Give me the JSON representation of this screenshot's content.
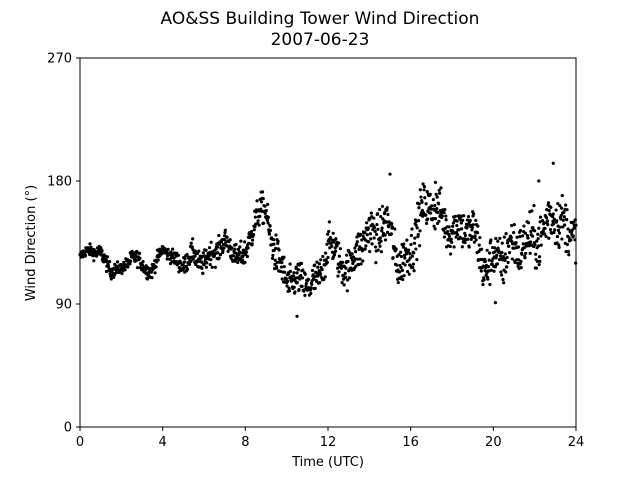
{
  "chart_data": {
    "type": "scatter",
    "title": "AO&SS Building Tower Wind Direction",
    "subtitle": "2007-06-23",
    "xlabel": "Time (UTC)",
    "ylabel": "Wind Direction (°)",
    "xlim": [
      0,
      24
    ],
    "ylim": [
      0,
      270
    ],
    "xticks": [
      0,
      4,
      8,
      12,
      16,
      20,
      24
    ],
    "xtick_labels": [
      "0",
      "4",
      "8",
      "12",
      "16",
      "20",
      "24"
    ],
    "yticks": [
      0,
      90,
      180,
      270
    ],
    "ytick_labels": [
      "0",
      "90",
      "180",
      "270"
    ],
    "grid": false,
    "marker_color": "#000000",
    "trend": {
      "x": [
        0,
        0.5,
        1.0,
        1.5,
        2.0,
        2.5,
        3.0,
        3.5,
        4.0,
        4.5,
        5.0,
        5.5,
        6.0,
        6.5,
        7.0,
        7.5,
        8.0,
        8.5,
        9.0,
        9.5,
        10.0,
        10.5,
        11.0,
        11.5,
        12.0,
        12.5,
        13.0,
        13.5,
        14.0,
        14.5,
        15.0,
        15.5,
        16.0,
        16.5,
        17.0,
        17.5,
        18.0,
        18.5,
        19.0,
        19.5,
        20.0,
        20.5,
        21.0,
        21.5,
        22.0,
        22.5,
        23.0,
        23.5,
        24.0
      ],
      "y": [
        124,
        128,
        126,
        118,
        115,
        122,
        119,
        116,
        132,
        120,
        118,
        130,
        121,
        124,
        134,
        131,
        126,
        150,
        155,
        130,
        110,
        100,
        102,
        110,
        138,
        118,
        110,
        140,
        145,
        138,
        140,
        122,
        136,
        148,
        160,
        158,
        150,
        140,
        138,
        124,
        128,
        120,
        125,
        140,
        145,
        138,
        150,
        148,
        152
      ],
      "spread": [
        3,
        3,
        4,
        4,
        3,
        4,
        4,
        4,
        3,
        4,
        5,
        6,
        6,
        6,
        6,
        6,
        7,
        8,
        8,
        10,
        9,
        9,
        9,
        10,
        9,
        10,
        10,
        11,
        12,
        12,
        12,
        12,
        12,
        12,
        11,
        11,
        11,
        11,
        12,
        12,
        12,
        13,
        13,
        13,
        14,
        14,
        14,
        13,
        12
      ]
    },
    "samples_per_hour": 60,
    "notable_points": [
      {
        "x": 15.0,
        "y": 185
      },
      {
        "x": 22.9,
        "y": 193
      },
      {
        "x": 22.2,
        "y": 180
      },
      {
        "x": 10.5,
        "y": 81
      },
      {
        "x": 20.1,
        "y": 91
      },
      {
        "x": 17.2,
        "y": 179
      }
    ]
  }
}
